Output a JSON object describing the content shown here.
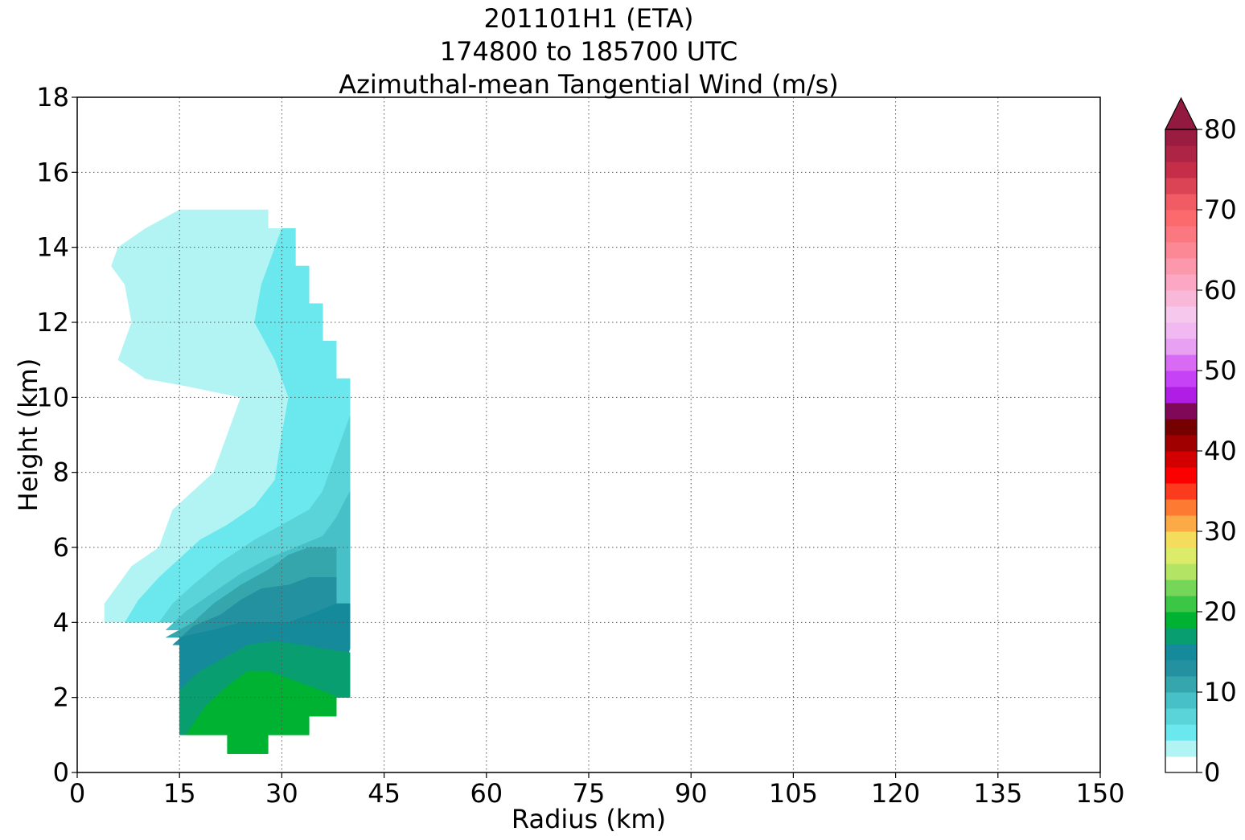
{
  "chart_data": {
    "type": "filled-contour",
    "title_lines": [
      "201101H1 (ETA)",
      "174800 to 185700 UTC",
      "Azimuthal-mean Tangential Wind (m/s)"
    ],
    "xlabel": "Radius (km)",
    "ylabel": "Height (km)",
    "xlim": [
      0,
      150
    ],
    "ylim": [
      0,
      18
    ],
    "xticks": [
      0,
      15,
      30,
      45,
      60,
      75,
      90,
      105,
      120,
      135,
      150
    ],
    "yticks": [
      0,
      2,
      4,
      6,
      8,
      10,
      12,
      14,
      16,
      18
    ],
    "grid": true,
    "grid_style": "dotted",
    "colorbar": {
      "min": 0,
      "max": 80,
      "step": 2,
      "extend": "max",
      "ticks": [
        0,
        10,
        20,
        30,
        40,
        50,
        60,
        70,
        80
      ],
      "colors": [
        "#ffffff",
        "#b2f4f4",
        "#6ae8ed",
        "#5ad4d9",
        "#47c0c8",
        "#36a6ad",
        "#2391a0",
        "#148a9b",
        "#089e70",
        "#00b232",
        "#3cc646",
        "#76d65a",
        "#b4e463",
        "#dcec6a",
        "#f4dc5c",
        "#fcaa46",
        "#fc7a32",
        "#fc3a1e",
        "#fc0000",
        "#d20000",
        "#a00000",
        "#760000",
        "#800858",
        "#b01ee6",
        "#c642f6",
        "#d86af4",
        "#e8a0f2",
        "#f2b8f2",
        "#f6c8ee",
        "#f9b8d8",
        "#fca8c4",
        "#fc98ac",
        "#fc8896",
        "#fc7880",
        "#fc6a6e",
        "#f05c64",
        "#da4454",
        "#c42e48",
        "#ae2444",
        "#9a1c40"
      ],
      "extend_color": "#921a40"
    },
    "filled_regions": [
      {
        "range": [
          2,
          4
        ],
        "color": "#b2f4f4",
        "outline": [
          [
            4,
            4.5
          ],
          [
            6,
            5
          ],
          [
            8,
            5.5
          ],
          [
            12,
            6
          ],
          [
            13,
            6.5
          ],
          [
            14,
            7
          ],
          [
            17,
            7.5
          ],
          [
            20,
            8
          ],
          [
            22,
            9
          ],
          [
            24,
            10
          ],
          [
            16,
            10.3
          ],
          [
            10,
            10.5
          ],
          [
            6,
            11
          ],
          [
            8,
            12
          ],
          [
            7,
            13
          ],
          [
            5,
            13.5
          ],
          [
            6,
            14
          ],
          [
            10,
            14.5
          ],
          [
            12,
            14.7
          ],
          [
            15,
            15
          ],
          [
            28,
            15
          ],
          [
            28,
            14.5
          ],
          [
            32,
            14.5
          ],
          [
            32,
            13.5
          ],
          [
            34,
            13.5
          ],
          [
            34,
            12.5
          ],
          [
            36,
            12.5
          ],
          [
            36,
            11.5
          ],
          [
            38,
            11.5
          ],
          [
            38,
            10.5
          ],
          [
            40,
            10.5
          ],
          [
            40,
            4
          ],
          [
            4,
            4
          ]
        ]
      },
      {
        "range": [
          4,
          6
        ],
        "color": "#6ae8ed",
        "outline": [
          [
            7,
            4
          ],
          [
            9,
            4.6
          ],
          [
            12,
            5.2
          ],
          [
            15,
            5.7
          ],
          [
            18,
            6.2
          ],
          [
            22,
            6.6
          ],
          [
            26,
            7.1
          ],
          [
            29,
            7.8
          ],
          [
            30,
            9
          ],
          [
            31,
            10
          ],
          [
            29,
            11
          ],
          [
            26,
            12
          ],
          [
            27,
            13
          ],
          [
            29,
            14
          ],
          [
            30,
            14.5
          ],
          [
            32,
            14.5
          ],
          [
            32,
            13.5
          ],
          [
            34,
            13.5
          ],
          [
            34,
            12.5
          ],
          [
            36,
            12.5
          ],
          [
            36,
            11.5
          ],
          [
            38,
            11.5
          ],
          [
            38,
            10.5
          ],
          [
            40,
            10.5
          ],
          [
            40,
            4
          ]
        ]
      },
      {
        "range": [
          6,
          8
        ],
        "color": "#5ad4d9",
        "outline": [
          [
            12,
            4
          ],
          [
            14,
            4.5
          ],
          [
            17,
            5
          ],
          [
            21,
            5.6
          ],
          [
            26,
            6.2
          ],
          [
            30,
            6.6
          ],
          [
            34,
            7
          ],
          [
            36,
            7.5
          ],
          [
            38,
            8.5
          ],
          [
            40,
            9.5
          ],
          [
            40,
            4
          ]
        ]
      },
      {
        "range": [
          8,
          10
        ],
        "color": "#47c0c8",
        "outline": [
          [
            13,
            3.8
          ],
          [
            16,
            4.3
          ],
          [
            20,
            4.8
          ],
          [
            24,
            5.3
          ],
          [
            28,
            5.7
          ],
          [
            32,
            6
          ],
          [
            36,
            6.3
          ],
          [
            38,
            6.8
          ],
          [
            40,
            7.5
          ],
          [
            40,
            4
          ],
          [
            38,
            3.8
          ]
        ]
      },
      {
        "range": [
          10,
          12
        ],
        "color": "#36a6ad",
        "outline": [
          [
            13,
            3.6
          ],
          [
            17,
            4
          ],
          [
            20,
            4.5
          ],
          [
            24,
            5
          ],
          [
            28,
            5.4
          ],
          [
            31,
            5.8
          ],
          [
            34,
            6
          ],
          [
            38,
            6
          ],
          [
            38,
            3.6
          ]
        ]
      },
      {
        "range": [
          12,
          14
        ],
        "color": "#2391a0",
        "outline": [
          [
            14,
            3.4
          ],
          [
            17,
            3.9
          ],
          [
            21,
            4.2
          ],
          [
            24,
            4.6
          ],
          [
            27,
            4.9
          ],
          [
            31,
            5
          ],
          [
            34,
            5.2
          ],
          [
            38,
            5.2
          ],
          [
            38,
            4.5
          ],
          [
            40,
            4.5
          ],
          [
            40,
            3.4
          ]
        ]
      },
      {
        "range": [
          14,
          16
        ],
        "color": "#148a9b",
        "outline": [
          [
            15,
            1.2
          ],
          [
            15,
            3.6
          ],
          [
            20,
            3.8
          ],
          [
            24,
            4
          ],
          [
            28,
            4
          ],
          [
            31,
            4
          ],
          [
            34,
            4.2
          ],
          [
            38,
            4.5
          ],
          [
            40,
            4.5
          ],
          [
            40,
            3.3
          ],
          [
            38,
            2.2
          ],
          [
            34,
            2
          ],
          [
            30,
            1.6
          ],
          [
            24,
            1.4
          ],
          [
            18,
            1.2
          ]
        ]
      },
      {
        "range": [
          16,
          18
        ],
        "color": "#089e70",
        "outline": [
          [
            15,
            1
          ],
          [
            15,
            2.2
          ],
          [
            18,
            2.7
          ],
          [
            22,
            3.1
          ],
          [
            25,
            3.4
          ],
          [
            29,
            3.5
          ],
          [
            33,
            3.4
          ],
          [
            36,
            3.3
          ],
          [
            40,
            3.2
          ],
          [
            40,
            2
          ],
          [
            38,
            2
          ],
          [
            38,
            1.5
          ],
          [
            34,
            1.5
          ],
          [
            34,
            1
          ],
          [
            15,
            1
          ]
        ]
      },
      {
        "range": [
          18,
          20
        ],
        "color": "#00b232",
        "outline": [
          [
            16,
            1
          ],
          [
            17,
            1.3
          ],
          [
            19,
            1.8
          ],
          [
            22,
            2.3
          ],
          [
            25,
            2.7
          ],
          [
            28,
            2.7
          ],
          [
            31,
            2.5
          ],
          [
            34,
            2.3
          ],
          [
            37,
            2.1
          ],
          [
            38,
            2
          ],
          [
            38,
            1.5
          ],
          [
            34,
            1.5
          ],
          [
            34,
            1
          ],
          [
            28,
            1
          ],
          [
            28,
            0.5
          ],
          [
            22,
            0.5
          ],
          [
            22,
            1
          ],
          [
            16,
            1
          ]
        ]
      }
    ]
  }
}
